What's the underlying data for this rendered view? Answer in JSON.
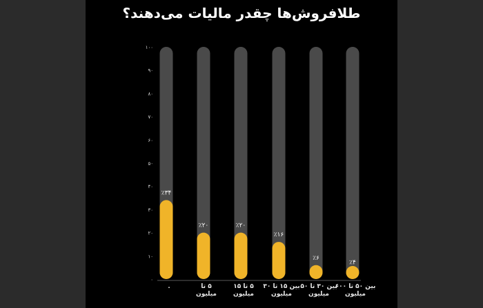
{
  "chart_data": {
    "type": "bar",
    "title": "طلافروش‌ها چقدر مالیات می‌دهند؟",
    "categories": [
      [
        "۰"
      ],
      [
        "۵ تا",
        "میلیون"
      ],
      [
        "۵ تا ۱۵",
        "میلیون"
      ],
      [
        "بین ۱۵ تا ۳۰",
        "میلیون"
      ],
      [
        "بین ۳۰ تا ۵۰",
        "میلیون"
      ],
      [
        "بین ۵۰ تا ۶۰۰",
        "میلیون"
      ]
    ],
    "values": [
      34,
      20,
      20,
      16,
      6,
      4
    ],
    "value_labels": [
      "٪۳۴",
      "٪۲۰",
      "٪۲۰",
      "٪۱۶",
      "٪۶",
      "٪۴"
    ],
    "ylim": [
      0,
      100
    ],
    "yticks": [
      0,
      10,
      20,
      30,
      40,
      50,
      60,
      70,
      80,
      90,
      100
    ],
    "ytick_labels": [
      "۰",
      "۱۰",
      "۲۰",
      "۳۰",
      "۴۰",
      "۵۰",
      "۶۰",
      "۷۰",
      "۸۰",
      "۹۰",
      "۱۰۰"
    ],
    "colors": {
      "bar_fill": "#f0b429",
      "track": "#4a4a4a",
      "background": "#000000"
    }
  }
}
